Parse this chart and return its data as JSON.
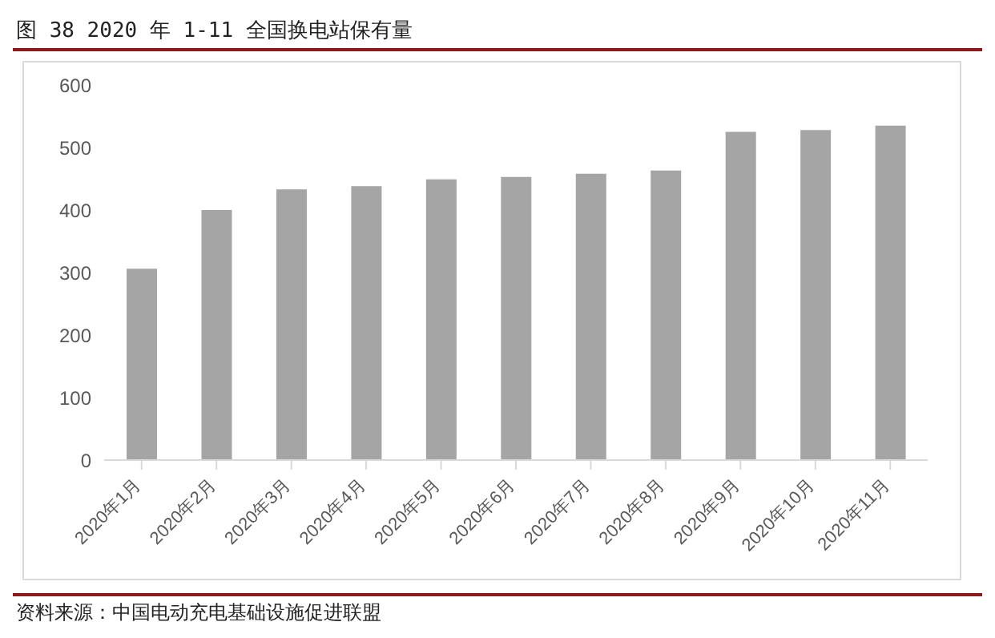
{
  "chart_data": {
    "type": "bar",
    "title": "图 38 2020 年 1-11 全国换电站保有量",
    "categories": [
      "2020年1月",
      "2020年2月",
      "2020年3月",
      "2020年4月",
      "2020年5月",
      "2020年6月",
      "2020年7月",
      "2020年8月",
      "2020年9月",
      "2020年10月",
      "2020年11月"
    ],
    "values": [
      306,
      400,
      433,
      438,
      449,
      453,
      458,
      463,
      525,
      528,
      535
    ],
    "color": "#a5a5a5",
    "ylim": [
      0,
      600
    ],
    "yticks": [
      0,
      100,
      200,
      300,
      400,
      500,
      600
    ],
    "grid": false,
    "annotations": [
      "资料来源：中国电动充电基础设施促进联盟"
    ]
  }
}
